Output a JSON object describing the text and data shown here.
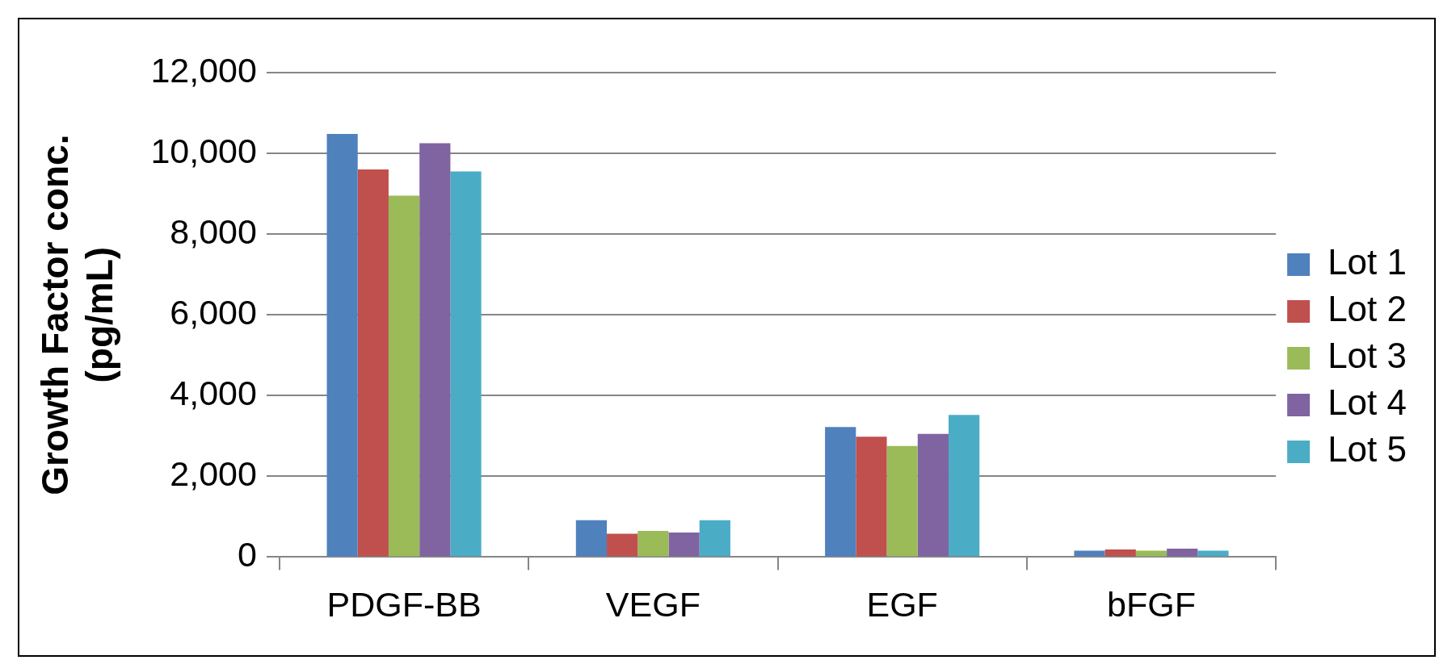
{
  "chart_data": {
    "type": "bar",
    "ylabel": "Growth Factor conc.\n(pg/mL)",
    "categories": [
      "PDGF-BB",
      "VEGF",
      "EGF",
      "bFGF"
    ],
    "series": [
      {
        "name": "Lot 1",
        "color": "#4f81bd",
        "values": [
          10480,
          910,
          3220,
          160
        ]
      },
      {
        "name": "Lot 2",
        "color": "#c0504d",
        "values": [
          9600,
          580,
          2980,
          190
        ]
      },
      {
        "name": "Lot 3",
        "color": "#9bbb59",
        "values": [
          8950,
          650,
          2750,
          160
        ]
      },
      {
        "name": "Lot 4",
        "color": "#8064a2",
        "values": [
          10250,
          610,
          3050,
          210
        ]
      },
      {
        "name": "Lot 5",
        "color": "#4bacc6",
        "values": [
          9550,
          910,
          3520,
          160
        ]
      }
    ],
    "ylim": [
      0,
      12000
    ],
    "yticks": [
      0,
      {
        "value": 2000,
        "label": "2,000"
      },
      {
        "value": 4000,
        "label": "4,000"
      },
      {
        "value": 6000,
        "label": "6,000"
      },
      {
        "value": 8000,
        "label": "8,000"
      },
      {
        "value": 10000,
        "label": "10,000"
      },
      {
        "value": 12000,
        "label": "12,000"
      }
    ],
    "grid": "y",
    "legend": "right"
  }
}
